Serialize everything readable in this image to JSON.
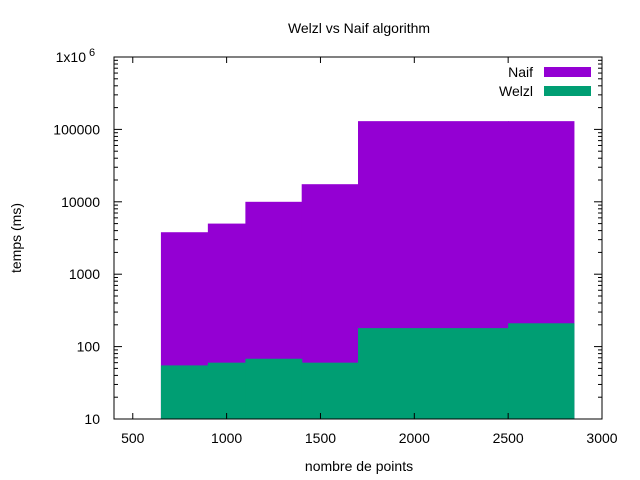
{
  "chart_data": {
    "type": "bar",
    "title": "Welzl vs Naif algorithm",
    "xlabel": "nombre de points",
    "ylabel": "temps (ms)",
    "xlim": [
      400,
      3000
    ],
    "ylim": [
      10,
      1000000
    ],
    "yscale": "log",
    "grid": false,
    "legend_position": "top-right",
    "x_ticks": [
      500,
      1000,
      1500,
      2000,
      2500,
      3000
    ],
    "y_ticks": [
      {
        "value": 10,
        "label": "10"
      },
      {
        "value": 100,
        "label": "100"
      },
      {
        "value": 1000,
        "label": "1000"
      },
      {
        "value": 10000,
        "label": "10000"
      },
      {
        "value": 100000,
        "label": "100000"
      },
      {
        "value": 1000000,
        "label": "1x10",
        "exponent": "6"
      }
    ],
    "x_edges": [
      650,
      900,
      1100,
      1400,
      1700,
      2500,
      2850
    ],
    "series": [
      {
        "name": "Naif",
        "color": "#9400d3",
        "values": [
          3800,
          5000,
          10000,
          17500,
          130000,
          130000
        ]
      },
      {
        "name": "Welzl",
        "color": "#009e73",
        "values": [
          55,
          60,
          68,
          60,
          180,
          210
        ]
      }
    ]
  }
}
